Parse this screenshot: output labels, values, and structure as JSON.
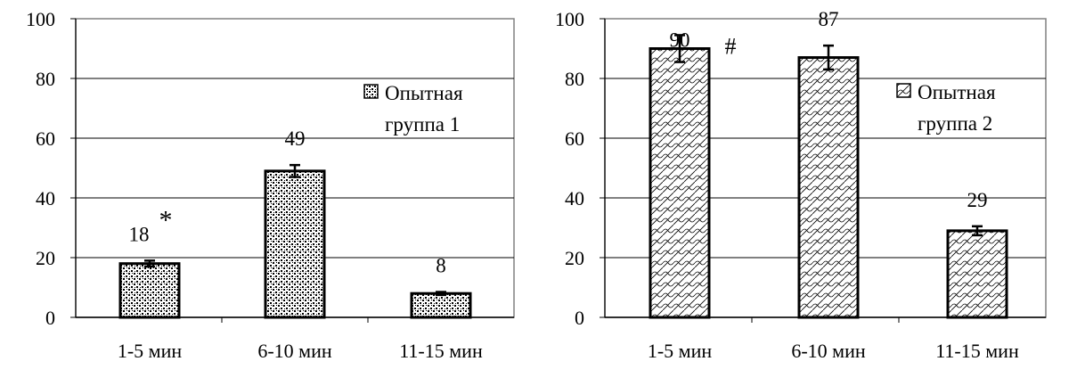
{
  "chart_data": [
    {
      "type": "bar",
      "categories": [
        "1-5 мин",
        "6-10 мин",
        "11-15 мин"
      ],
      "series": [
        {
          "name": "Опытная группа 1",
          "values": [
            18,
            49,
            8
          ],
          "errors": [
            1,
            2,
            0.5
          ]
        }
      ],
      "data_labels": [
        "18",
        "49",
        "8"
      ],
      "annotations": [
        {
          "category": "1-5 мин",
          "text": "*"
        }
      ],
      "legend": {
        "line1": "Опытная",
        "line2": "группа 1",
        "position": "top-right"
      },
      "ylim": [
        0,
        100
      ],
      "yticks": [
        "0",
        "20",
        "40",
        "60",
        "80",
        "100"
      ],
      "grid": true,
      "pattern": "dots"
    },
    {
      "type": "bar",
      "categories": [
        "1-5 мин",
        "6-10 мин",
        "11-15 мин"
      ],
      "series": [
        {
          "name": "Опытная группа 2",
          "values": [
            90,
            87,
            29
          ],
          "errors": [
            4.5,
            4,
            1.5
          ]
        }
      ],
      "data_labels": [
        "90",
        "87",
        "29"
      ],
      "annotations": [
        {
          "category": "1-5 мин",
          "text": "#"
        }
      ],
      "legend": {
        "line1": "Опытная",
        "line2": "группа 2",
        "position": "right"
      },
      "ylim": [
        0,
        100
      ],
      "yticks": [
        "0",
        "20",
        "40",
        "60",
        "80",
        "100"
      ],
      "grid": true,
      "pattern": "waves"
    }
  ]
}
